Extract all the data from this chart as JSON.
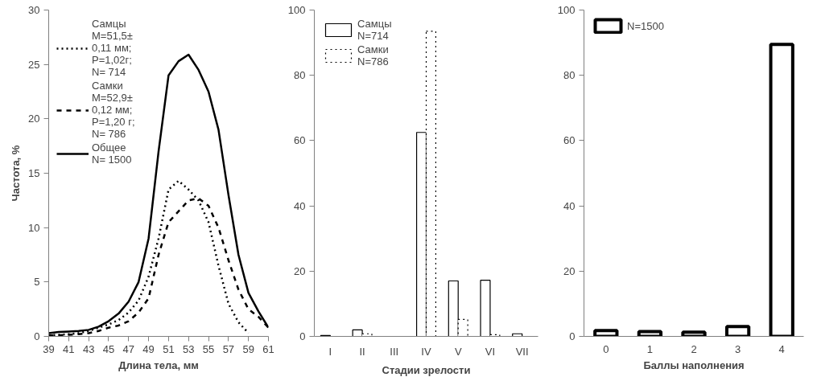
{
  "chart_data": [
    {
      "type": "line",
      "xlabel": "Длина тела, мм",
      "ylabel": "Частота, %",
      "x": [
        39,
        40,
        41,
        42,
        43,
        44,
        45,
        46,
        47,
        48,
        49,
        50,
        51,
        52,
        53,
        54,
        55,
        56,
        57,
        58,
        59,
        60,
        61
      ],
      "xlim": [
        39,
        61
      ],
      "xticks": [
        39,
        41,
        43,
        45,
        47,
        49,
        51,
        53,
        55,
        57,
        59,
        61
      ],
      "ylim": [
        0,
        30
      ],
      "yticks": [
        0,
        5,
        10,
        15,
        20,
        25,
        30
      ],
      "grid": false,
      "legend": "top left",
      "marker": "none",
      "series": [
        {
          "name": "Самцы\nM=51,5±\n0,11 мм;\nP=1,02г;\nN= 714",
          "color": "#000000",
          "line_style": "dotted",
          "values": [
            0.1,
            0.15,
            0.2,
            0.3,
            0.5,
            0.8,
            1.1,
            1.5,
            2.2,
            3.3,
            5.5,
            9,
            13.5,
            14.3,
            13.5,
            12.5,
            10.5,
            6.5,
            3,
            1.3,
            0.3,
            null,
            null
          ]
        },
        {
          "name": "Самки\nM=52,9±\n0,12 мм;\nP=1,20 г;\nN= 786",
          "color": "#000000",
          "line_style": "dashed",
          "values": [
            0.1,
            0.1,
            0.15,
            0.2,
            0.3,
            0.5,
            0.8,
            1.0,
            1.4,
            2.2,
            3.5,
            7.5,
            10.5,
            11.5,
            12.5,
            12.7,
            12,
            10,
            7,
            4.3,
            2.5,
            1.8,
            0.8
          ]
        },
        {
          "name": "Общее\nN= 1500",
          "color": "#000000",
          "line_style": "solid",
          "values": [
            0.3,
            0.4,
            0.45,
            0.5,
            0.6,
            0.9,
            1.4,
            2.1,
            3.2,
            5,
            9,
            17,
            24,
            25.3,
            25.9,
            24.5,
            22.5,
            19,
            13,
            7.5,
            4,
            2.3,
            0.8
          ]
        }
      ]
    },
    {
      "type": "bar",
      "xlabel": "Стадии зрелости",
      "categories": [
        "I",
        "II",
        "III",
        "IV",
        "V",
        "VI",
        "VII"
      ],
      "ylim": [
        0,
        100
      ],
      "yticks": [
        0,
        20,
        40,
        60,
        80,
        100
      ],
      "grid": false,
      "legend": "top left",
      "series": [
        {
          "name": "Самцы\nN=714",
          "color": "#000000",
          "line_style": "solid",
          "values": [
            0.3,
            2,
            0,
            62.5,
            17,
            17.2,
            0.8
          ]
        },
        {
          "name": "Самки\nN=786",
          "color": "#000000",
          "line_style": "dotted",
          "values": [
            0,
            0.8,
            0,
            93.5,
            5.2,
            0.5,
            0
          ]
        }
      ]
    },
    {
      "type": "bar",
      "xlabel": "Баллы наполнения",
      "categories": [
        "0",
        "1",
        "2",
        "3",
        "4"
      ],
      "ylim": [
        0,
        100
      ],
      "yticks": [
        0,
        20,
        40,
        60,
        80,
        100
      ],
      "grid": false,
      "legend": "top left",
      "series": [
        {
          "name": "N=1500",
          "color": "#000000",
          "line_style": "solid",
          "values": [
            1.8,
            1.5,
            1.3,
            3,
            89.5
          ]
        }
      ]
    }
  ]
}
